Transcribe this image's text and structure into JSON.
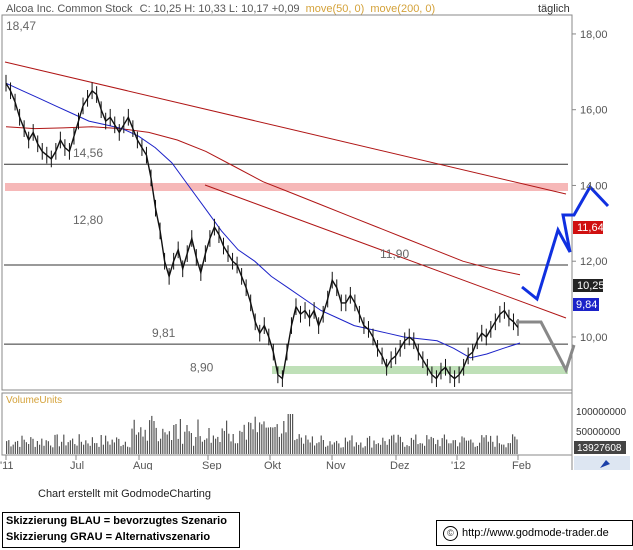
{
  "header": {
    "name": "Alcoa Inc. Common Stock",
    "ohlc": "C: 10,25  H: 10,33  L: 10,17 +0,09",
    "ma50_label": "move(50, 0)",
    "ma200_label": "move(200, 0)",
    "period": "täglich"
  },
  "colors": {
    "price": "#111111",
    "ma50": "#1c22c8",
    "ma200": "#b01616",
    "trend": "#b01616",
    "support": "#333333",
    "blue_scenario": "#1030e0",
    "gray_scenario": "#888888",
    "resistance_zone": "#f6b8b8",
    "support_zone": "#bfe0b8",
    "axis_text": "#555555"
  },
  "chart_data": {
    "type": "line",
    "x_ticks": [
      "'11",
      "Jul",
      "Aug",
      "Sep",
      "Okt",
      "Nov",
      "Dez",
      "'12",
      "Feb"
    ],
    "y_ticks": [
      "18,00",
      "16,00",
      "14,00",
      "12,00",
      "10,00"
    ],
    "ylim": [
      8.6,
      18.5
    ],
    "price_series": {
      "values": [
        16.7,
        16.5,
        16.2,
        15.8,
        15.5,
        15.2,
        15.4,
        15.1,
        14.9,
        14.8,
        14.7,
        14.9,
        15.2,
        15.0,
        14.9,
        15.3,
        15.7,
        16.1,
        16.3,
        16.5,
        16.4,
        16.0,
        15.7,
        15.8,
        15.6,
        15.4,
        15.6,
        15.8,
        15.5,
        15.2,
        15.0,
        14.8,
        14.2,
        13.4,
        12.8,
        12.0,
        11.6,
        12.0,
        12.3,
        11.8,
        12.2,
        12.6,
        12.1,
        11.7,
        12.2,
        12.6,
        12.9,
        12.7,
        12.4,
        12.2,
        12.0,
        11.9,
        11.6,
        11.3,
        10.9,
        10.4,
        10.1,
        10.3,
        10.0,
        9.6,
        9.0,
        8.9,
        9.6,
        10.3,
        10.8,
        10.6,
        10.7,
        10.5,
        10.7,
        10.3,
        10.6,
        11.0,
        11.5,
        11.3,
        10.9,
        10.9,
        11.1,
        10.9,
        10.6,
        10.3,
        10.2,
        10.0,
        9.7,
        9.5,
        9.2,
        9.4,
        9.5,
        9.7,
        9.9,
        10.0,
        9.9,
        9.6,
        9.4,
        9.2,
        9.0,
        8.9,
        9.1,
        9.2,
        9.0,
        8.9,
        9.0,
        9.2,
        9.5,
        9.6,
        9.9,
        10.1,
        10.0,
        10.2,
        10.4,
        10.6,
        10.7,
        10.5,
        10.4,
        10.25
      ],
      "last": "10,25"
    },
    "ma50_series": {
      "values": [
        16.7,
        16.5,
        16.3,
        16.1,
        15.9,
        15.7,
        15.6,
        15.5,
        15.3,
        15.0,
        14.6,
        14.0,
        13.4,
        12.8,
        12.3,
        12.0,
        11.6,
        11.3,
        11.0,
        10.7,
        10.5,
        10.3,
        10.2,
        10.1,
        10.0,
        9.95,
        9.9,
        9.7,
        9.45,
        9.55,
        9.7,
        9.84
      ],
      "last": "9,84"
    },
    "ma200_series": {
      "values": [
        15.55,
        15.5,
        15.52,
        15.55,
        15.5,
        15.4,
        15.2,
        14.9,
        14.5,
        14.1,
        13.8,
        13.5,
        13.2,
        12.9,
        12.6,
        12.3,
        12.0,
        11.8,
        11.64
      ],
      "last": "11,64"
    },
    "horizontal_levels": [
      {
        "value": 14.56,
        "label": "14,56"
      },
      {
        "value": 12.8,
        "label": "12,80",
        "zone": "resistance"
      },
      {
        "value": 11.9,
        "label": "11,90"
      },
      {
        "value": 9.81,
        "label": "9,81"
      },
      {
        "value": 8.9,
        "label": "8,90",
        "zone": "support"
      }
    ],
    "top_left_label": "18,47",
    "volume": {
      "label": "VolumeUnits",
      "y_ticks": [
        "100000000",
        "50000000"
      ],
      "last": "13927608"
    }
  },
  "footer": {
    "credit": "Chart erstellt mit GodmodeCharting",
    "legend_blue": "Skizzierung BLAU = bevorzugtes Szenario",
    "legend_gray": "Skizzierung GRAU = Alternativszenario",
    "site": "http://www.godmode-trader.de",
    "copyright_symbol": "©"
  }
}
